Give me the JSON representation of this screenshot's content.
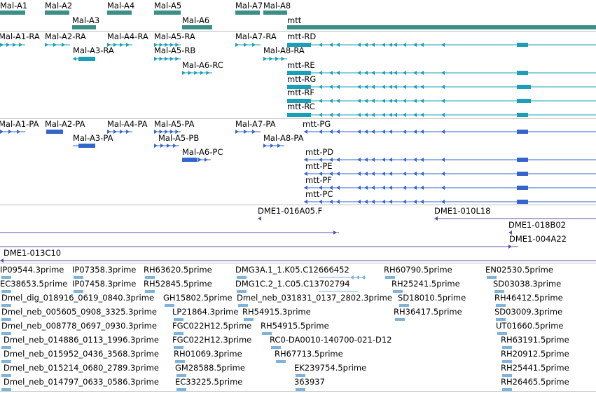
{
  "colors": {
    "gene": "#3a8f87",
    "transcript": "#1a9fb5",
    "protein": "#3366cc",
    "clone": "#6a4ca4",
    "est": "#7fb3d9"
  },
  "genes": [
    "Mal-A1",
    "Mal-A2",
    "Mal-A3",
    "Mal-A4",
    "Mal-A5",
    "Mal-A6",
    "Mal-A7",
    "Mal-A8",
    "mtt"
  ],
  "transcripts": [
    "Mal-A1-RA",
    "Mal-A2-RA",
    "Mal-A3-RA",
    "Mal-A4-RA",
    "Mal-A5-RA",
    "Mal-A5-RB",
    "Mal-A6-RC",
    "Mal-A7-RA",
    "Mal-A8-RA",
    "mtt-RD",
    "mtt-RE",
    "mtt-RG",
    "mtt-RF",
    "mtt-RC"
  ],
  "proteins": [
    "Mal-A1-PA",
    "Mal-A2-PA",
    "Mal-A3-PA",
    "Mal-A4-PA",
    "Mal-A5-PA",
    "Mal-A5-PB",
    "Mal-A6-PC",
    "Mal-A7-PA",
    "Mal-A8-PA",
    "mtt-PG",
    "mtt-PD",
    "mtt-PE",
    "mtt-PF",
    "mtt-PC"
  ],
  "clones": [
    "DME1-016A05.F",
    "DME1-010L18",
    "DME1-018B02",
    "DME1-004A22",
    "DME1-013C10"
  ],
  "ests": [
    "IP09544.3prime",
    "EC38653.5prime",
    "Dmel_dig_018916_0619_0840.3prime",
    "Dmel_neb_005605_0908_3325.3prime",
    "Dmel_neb_008778_0697_0930.3prime",
    "Dmel_neb_014886_0113_1996.3prime",
    "Dmel_neb_015952_0436_3568.3prime",
    "Dmel_neb_015214_0680_2789.3prime",
    "Dmel_neb_014797_0633_0586.3prime",
    "IP07358.3prime",
    "IP07458.3prime",
    "RH63620.5prime",
    "RH52845.5prime",
    "GH15802.5prime",
    "LP21864.3prime",
    "FGC022H12.5prime",
    "FGC022H12.3prime",
    "RH01069.3prime",
    "GM28588.5prime",
    "EC33225.5prime",
    "DMG3A.1_1.K05.C12666452",
    "DMG1C.2_1.C05.C13702794",
    "Dmel_neb_031831_0137_2802.3prime",
    "RH54915.3prime",
    "RH54915.5prime",
    "RC0-DA0010-140700-021-D12",
    "RH67713.5prime",
    "EK239754.5prime",
    "363937",
    "RH60790.5prime",
    "RH25241.5prime",
    "SD18010.5prime",
    "RH36417.5prime",
    "EN02530.5prime",
    "SD03038.3prime",
    "RH46412.5prime",
    "SD03009.3prime",
    "UT01660.5prime",
    "RH63191.5prime",
    "RH20912.5prime",
    "RH25441.5prime",
    "RH26465.5prime"
  ]
}
